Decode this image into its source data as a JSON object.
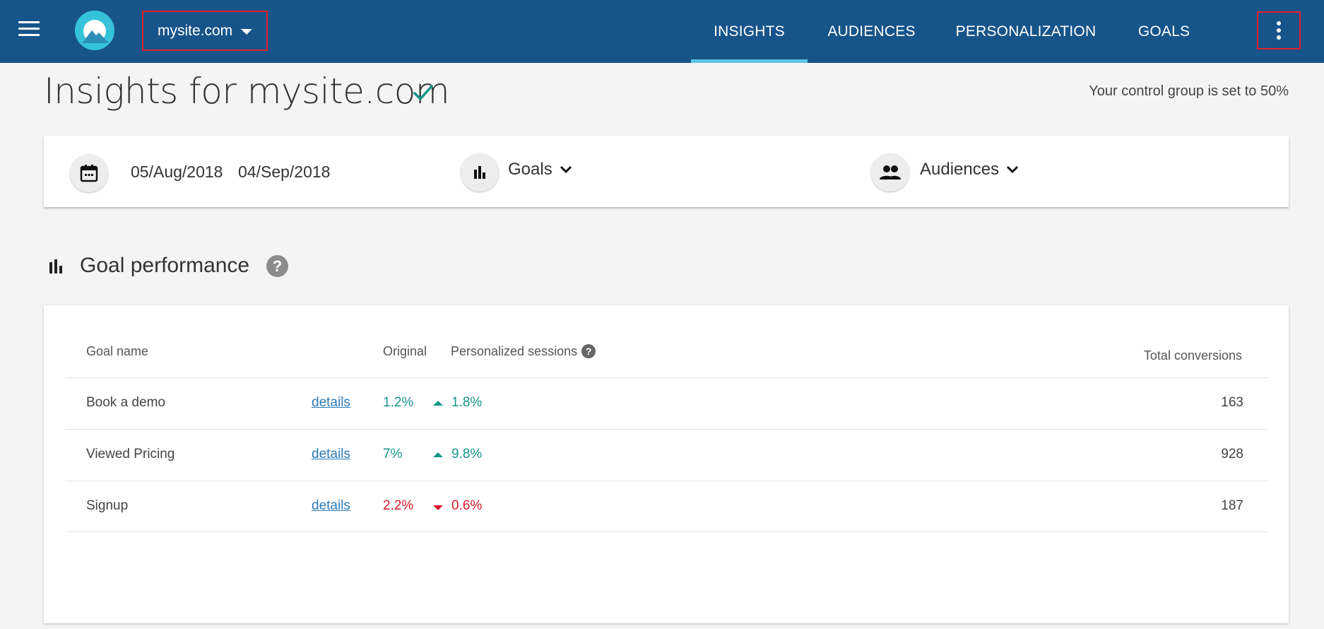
{
  "header": {
    "site_name": "mysite.com",
    "nav": [
      {
        "label": "INSIGHTS",
        "active": true
      },
      {
        "label": "AUDIENCES",
        "active": false
      },
      {
        "label": "PERSONALIZATION",
        "active": false
      },
      {
        "label": "GOALS",
        "active": false
      }
    ],
    "brand_color": "#17548a",
    "accent_color": "#5bc4e6"
  },
  "page": {
    "title": "Insights for mysite.com",
    "control_group_note": "Your control group is set to 50%"
  },
  "filters": {
    "start_date": "05/Aug/2018",
    "end_date": "04/Sep/2018",
    "goals_label": "Goals",
    "audiences_label": "Audiences"
  },
  "goal_performance": {
    "title": "Goal performance",
    "help_glyph": "?",
    "columns": {
      "goal_name": "Goal name",
      "original": "Original",
      "personalized": "Personalized sessions",
      "total": "Total conversions"
    },
    "rows": [
      {
        "name": "Book a demo",
        "details": "details",
        "original": "1.2%",
        "personalized": "1.8%",
        "trend": "up",
        "total": "163"
      },
      {
        "name": "Viewed Pricing",
        "details": "details",
        "original": "7%",
        "personalized": "9.8%",
        "trend": "up",
        "total": "928"
      },
      {
        "name": "Signup",
        "details": "details",
        "original": "2.2%",
        "personalized": "0.6%",
        "trend": "down",
        "total": "187"
      }
    ],
    "colors": {
      "up": "#15968a",
      "down": "#d6182c"
    }
  }
}
